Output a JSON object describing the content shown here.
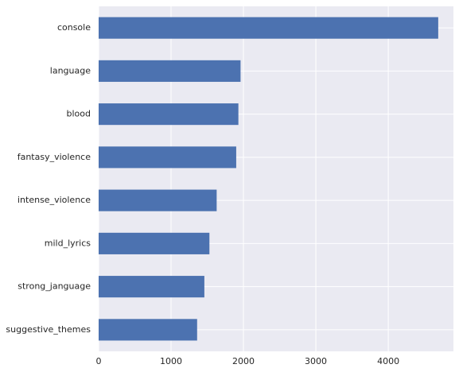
{
  "chart_data": {
    "type": "bar",
    "orientation": "horizontal",
    "categories": [
      "console",
      "language",
      "blood",
      "fantasy_violence",
      "intense_violence",
      "mild_lyrics",
      "strong_janguage",
      "suggestive_themes"
    ],
    "values": [
      4690,
      1960,
      1930,
      1900,
      1630,
      1530,
      1460,
      1360
    ],
    "xlim": [
      0,
      4900
    ],
    "xticks": [
      0,
      1000,
      2000,
      3000,
      4000
    ],
    "xtick_labels": [
      "0",
      "1000",
      "2000",
      "3000",
      "4000"
    ],
    "grid": true,
    "legend": "none",
    "colors": {
      "bar": "#4c72b0",
      "background": "#eaeaf2",
      "grid": "#ffffff",
      "text": "#262626"
    }
  }
}
